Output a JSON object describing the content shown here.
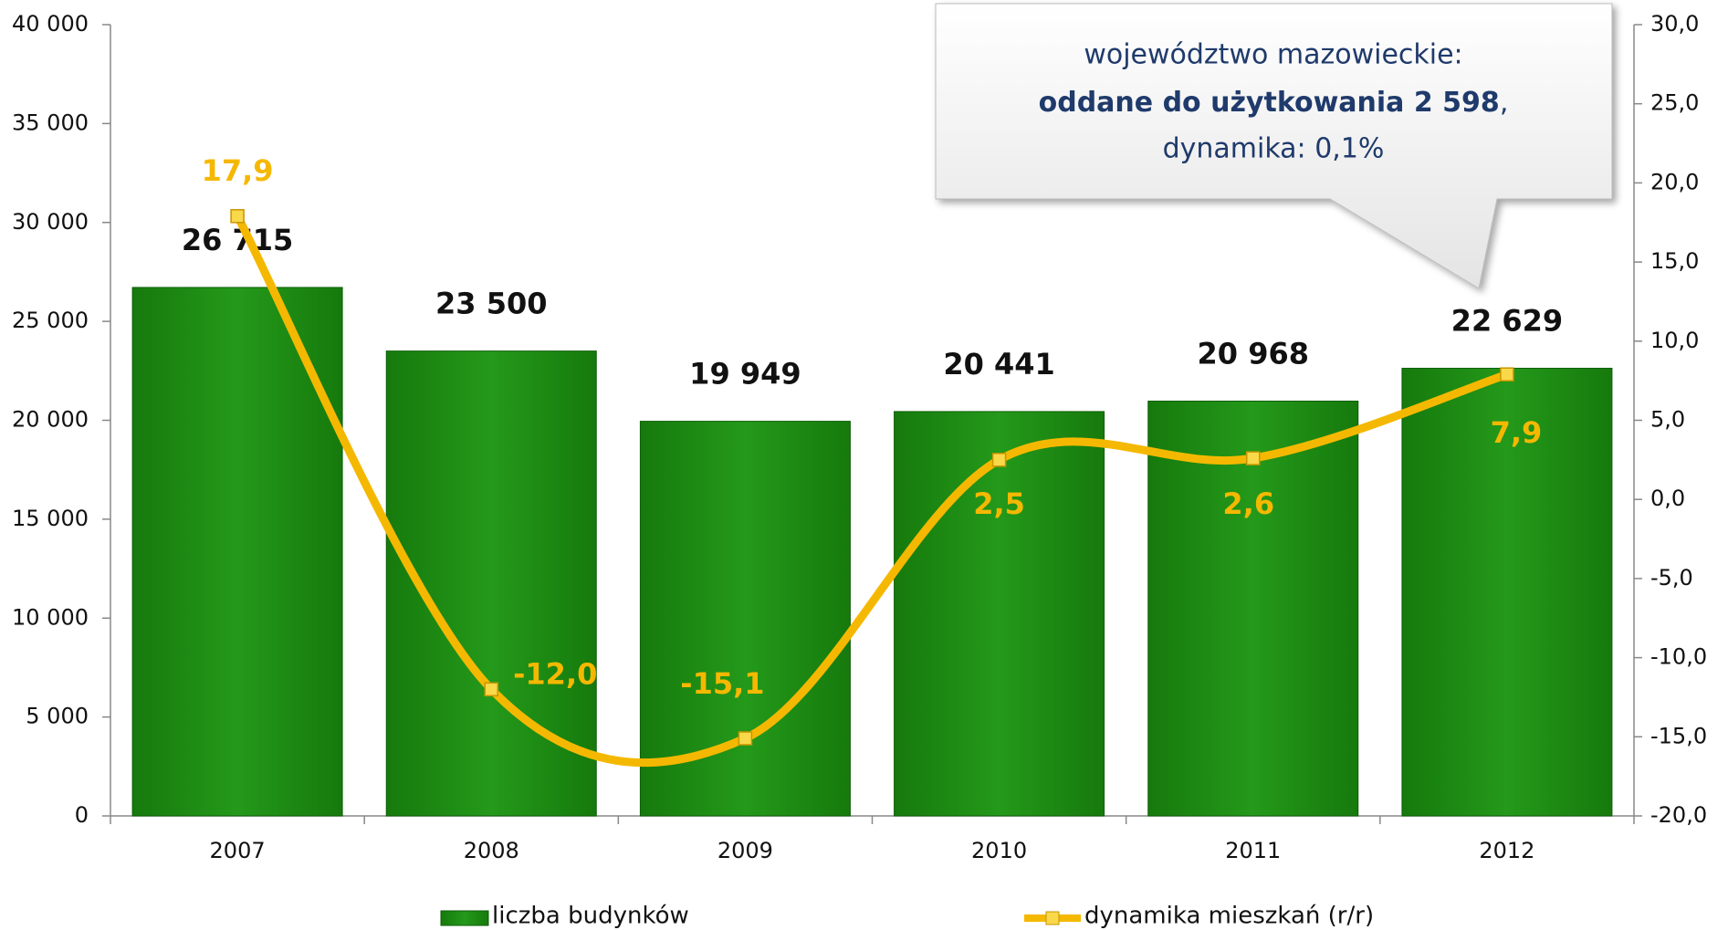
{
  "chart_data": {
    "type": "bar",
    "callout": {
      "line1": "województwo mazowieckie:",
      "line2": "oddane do użytkowania 2 598",
      "line2_tail": ",",
      "line3": "dynamika: 0,1%"
    },
    "categories": [
      "2007",
      "2008",
      "2009",
      "2010",
      "2011",
      "2012"
    ],
    "series": [
      {
        "name": "liczba budynków",
        "type": "bar",
        "color": "#1e8c12",
        "axis": "y",
        "values": [
          26715,
          23500,
          19949,
          20441,
          20968,
          22629
        ],
        "value_labels": [
          "26 715",
          "23 500",
          "19 949",
          "20 441",
          "20 968",
          "22 629"
        ]
      },
      {
        "name": "dynamika mieszkań (r/r)",
        "type": "line",
        "color": "#f5b800",
        "axis": "y2",
        "values": [
          17.9,
          -12.0,
          -15.1,
          2.5,
          2.6,
          7.9
        ],
        "value_labels": [
          "17,9",
          "-12,0",
          "-15,1",
          "2,5",
          "2,6",
          "7,9"
        ]
      }
    ],
    "ylim": [
      0,
      40000
    ],
    "yticks": [
      0,
      {
        "value": 5000,
        "label": "5 000"
      },
      {
        "value": 10000,
        "label": "10 000"
      },
      {
        "value": 15000,
        "label": "15 000"
      },
      {
        "value": 20000,
        "label": "20 000"
      },
      {
        "value": 25000,
        "label": "25 000"
      },
      {
        "value": 30000,
        "label": "30 000"
      },
      {
        "value": 35000,
        "label": "35 000"
      },
      {
        "value": 40000,
        "label": "40 000"
      }
    ],
    "y2lim": [
      -20,
      30
    ],
    "y2ticks": [
      {
        "value": -20,
        "label": "-20,0"
      },
      {
        "value": -15,
        "label": "-15,0"
      },
      {
        "value": -10,
        "label": "-10,0"
      },
      {
        "value": -5,
        "label": "-5,0"
      },
      {
        "value": 0,
        "label": "0,0"
      },
      {
        "value": 5,
        "label": "5,0"
      },
      {
        "value": 10,
        "label": "10,0"
      },
      {
        "value": 15,
        "label": "15,0"
      },
      {
        "value": 20,
        "label": "20,0"
      },
      {
        "value": 25,
        "label": "25,0"
      },
      {
        "value": 30,
        "label": "30,0"
      }
    ],
    "grid": false
  }
}
